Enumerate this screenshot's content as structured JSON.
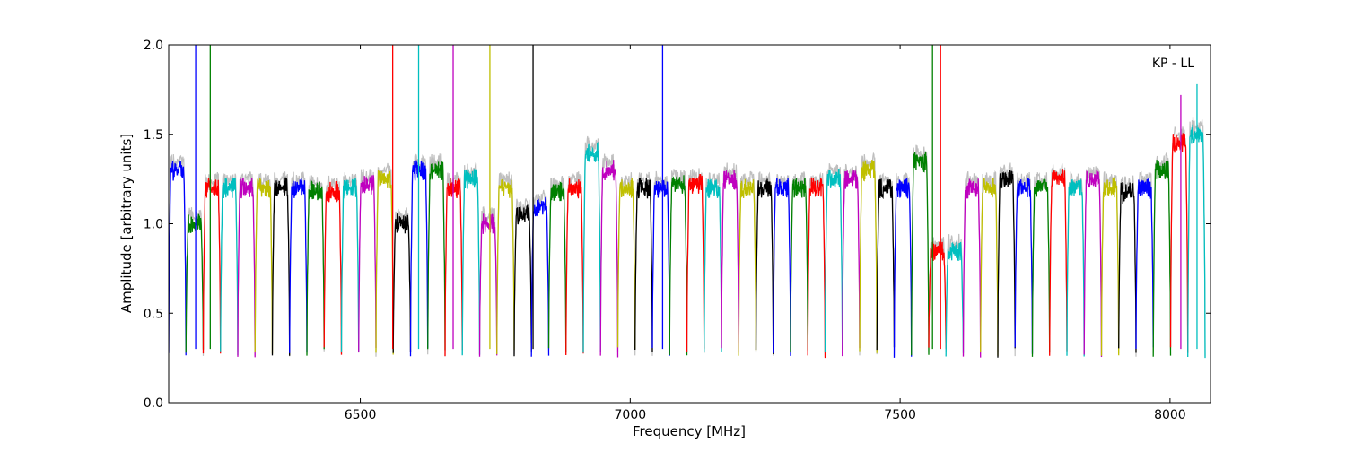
{
  "chart_data": {
    "type": "line",
    "title": "",
    "xlabel": "Frequency [MHz]",
    "ylabel": "Amplitude [arbitrary units]",
    "annotation": "KP - LL",
    "xlim": [
      6145,
      8075
    ],
    "ylim": [
      0.0,
      2.0
    ],
    "x_ticks": [
      6500,
      7000,
      7500,
      8000
    ],
    "x_tick_labels": [
      "6500",
      "7000",
      "7500",
      "8000"
    ],
    "y_ticks": [
      0.0,
      0.5,
      1.0,
      1.5,
      2.0
    ],
    "y_tick_labels": [
      "0.0",
      "0.5",
      "1.0",
      "1.5",
      "2.0"
    ],
    "grid": false,
    "legend": "none",
    "background_trace_color": "#bfbfbf",
    "channel_colors": [
      "#0000ff",
      "#008000",
      "#ff0000",
      "#00bfbf",
      "#bf00bf",
      "#bfbf00",
      "#000000"
    ],
    "channel_width_mhz": 32,
    "channel_starts": [
      6145,
      6177,
      6209,
      6241,
      6273,
      6305,
      6337,
      6369,
      6401,
      6433,
      6465,
      6497,
      6529,
      6561,
      6593,
      6625,
      6657,
      6689,
      6721,
      6753,
      6785,
      6817,
      6849,
      6881,
      6913,
      6945,
      6977,
      7009,
      7041,
      7073,
      7105,
      7137,
      7169,
      7201,
      7233,
      7265,
      7297,
      7329,
      7361,
      7393,
      7425,
      7457,
      7489,
      7521,
      7553,
      7585,
      7617,
      7649,
      7681,
      7713,
      7745,
      7777,
      7809,
      7841,
      7873,
      7905,
      7937,
      7969,
      8001,
      8033
    ],
    "channel_plateau": [
      1.3,
      1.0,
      1.2,
      1.2,
      1.2,
      1.2,
      1.2,
      1.2,
      1.18,
      1.18,
      1.2,
      1.22,
      1.25,
      1.0,
      1.3,
      1.3,
      1.2,
      1.25,
      1.0,
      1.2,
      1.05,
      1.1,
      1.18,
      1.2,
      1.4,
      1.3,
      1.2,
      1.2,
      1.2,
      1.22,
      1.22,
      1.2,
      1.25,
      1.2,
      1.2,
      1.2,
      1.2,
      1.2,
      1.25,
      1.25,
      1.3,
      1.2,
      1.2,
      1.35,
      0.85,
      0.85,
      1.2,
      1.2,
      1.25,
      1.2,
      1.2,
      1.25,
      1.2,
      1.25,
      1.2,
      1.18,
      1.2,
      1.3,
      1.45,
      1.5
    ],
    "spikes": [
      {
        "x": 6195,
        "y": 2.0
      },
      {
        "x": 6222,
        "y": 2.0
      },
      {
        "x": 6560,
        "y": 2.0
      },
      {
        "x": 6608,
        "y": 2.0
      },
      {
        "x": 6672,
        "y": 2.0
      },
      {
        "x": 6740,
        "y": 2.0
      },
      {
        "x": 6820,
        "y": 2.0
      },
      {
        "x": 7060,
        "y": 2.0
      },
      {
        "x": 7560,
        "y": 2.0
      },
      {
        "x": 7575,
        "y": 2.0
      },
      {
        "x": 8050,
        "y": 1.78
      },
      {
        "x": 8020,
        "y": 1.72
      }
    ]
  }
}
